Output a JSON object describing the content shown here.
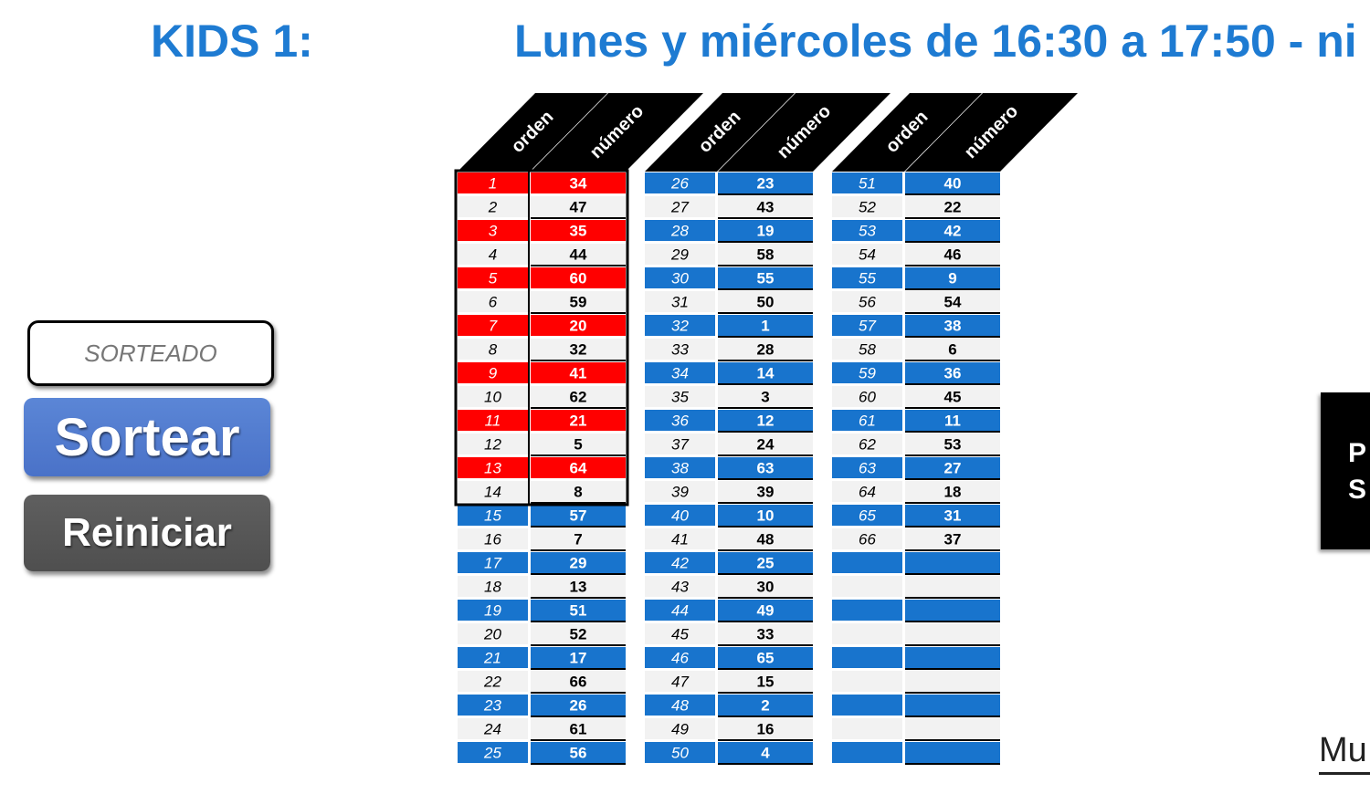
{
  "header": {
    "title_left": "KIDS 1:",
    "title_right": "Lunes y miércoles de 16:30 a 17:50 - ni"
  },
  "controls": {
    "status_text": "SORTEADO",
    "sortear_label": "Sortear",
    "reiniciar_label": "Reiniciar"
  },
  "side_panel": {
    "line1": "P",
    "line2": "S",
    "more_text": "Mu"
  },
  "table": {
    "header_orden": "orden",
    "header_numero": "número",
    "highlight_count": 14,
    "colors": {
      "red": "#ff0000",
      "blue": "#1874cd",
      "light": "#f2f2f2",
      "header": "#000000"
    },
    "columns": [
      {
        "orden": [
          "1",
          "2",
          "3",
          "4",
          "5",
          "6",
          "7",
          "8",
          "9",
          "10",
          "11",
          "12",
          "13",
          "14",
          "15",
          "16",
          "17",
          "18",
          "19",
          "20",
          "21",
          "22",
          "23",
          "24",
          "25"
        ],
        "numero": [
          "34",
          "47",
          "35",
          "44",
          "60",
          "59",
          "20",
          "32",
          "41",
          "62",
          "21",
          "5",
          "64",
          "8",
          "57",
          "7",
          "29",
          "13",
          "51",
          "52",
          "17",
          "66",
          "26",
          "61",
          "56"
        ]
      },
      {
        "orden": [
          "26",
          "27",
          "28",
          "29",
          "30",
          "31",
          "32",
          "33",
          "34",
          "35",
          "36",
          "37",
          "38",
          "39",
          "40",
          "41",
          "42",
          "43",
          "44",
          "45",
          "46",
          "47",
          "48",
          "49",
          "50"
        ],
        "numero": [
          "23",
          "43",
          "19",
          "58",
          "55",
          "50",
          "1",
          "28",
          "14",
          "3",
          "12",
          "24",
          "63",
          "39",
          "10",
          "48",
          "25",
          "30",
          "49",
          "33",
          "65",
          "15",
          "2",
          "16",
          "4"
        ]
      },
      {
        "orden": [
          "51",
          "52",
          "53",
          "54",
          "55",
          "56",
          "57",
          "58",
          "59",
          "60",
          "61",
          "62",
          "63",
          "64",
          "65",
          "66",
          "",
          "",
          "",
          "",
          "",
          "",
          "",
          "",
          ""
        ],
        "numero": [
          "40",
          "22",
          "42",
          "46",
          "9",
          "54",
          "38",
          "6",
          "36",
          "45",
          "11",
          "53",
          "27",
          "18",
          "31",
          "37",
          "",
          "",
          "",
          "",
          "",
          "",
          "",
          "",
          ""
        ]
      }
    ]
  }
}
